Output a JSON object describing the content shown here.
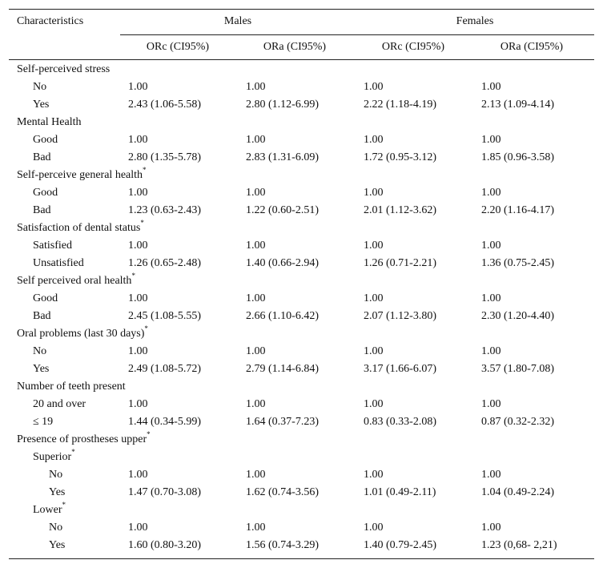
{
  "table": {
    "header": {
      "characteristics": "Characteristics",
      "groups": [
        {
          "label": "Males",
          "columns": [
            "ORc (CI95%)",
            "ORa (CI95%)"
          ]
        },
        {
          "label": "Females",
          "columns": [
            "ORc (CI95%)",
            "ORa (CI95%)"
          ]
        }
      ]
    },
    "sections": [
      {
        "label": "Self-perceived stress",
        "rows": [
          {
            "label": "No",
            "values": [
              "1.00",
              "1.00",
              "1.00",
              "1.00"
            ]
          },
          {
            "label": "Yes",
            "values": [
              "2.43 (1.06-5.58)",
              "2.80 (1.12-6.99)",
              "2.22 (1.18-4.19)",
              "2.13 (1.09-4.14)"
            ]
          }
        ]
      },
      {
        "label": "Mental Health",
        "rows": [
          {
            "label": "Good",
            "values": [
              "1.00",
              "1.00",
              "1.00",
              "1.00"
            ]
          },
          {
            "label": "Bad",
            "values": [
              "2.80 (1.35-5.78)",
              "2.83 (1.31-6.09)",
              "1.72 (0.95-3.12)",
              "1.85 (0.96-3.58)"
            ]
          }
        ]
      },
      {
        "label": "Self-perceive general health",
        "note": "*",
        "rows": [
          {
            "label": "Good",
            "values": [
              "1.00",
              "1.00",
              "1.00",
              "1.00"
            ]
          },
          {
            "label": "Bad",
            "values": [
              "1.23 (0.63-2.43)",
              "1.22 (0.60-2.51)",
              "2.01 (1.12-3.62)",
              "2.20 (1.16-4.17)"
            ]
          }
        ]
      },
      {
        "label": "Satisfaction of dental status",
        "note": "*",
        "rows": [
          {
            "label": "Satisfied",
            "values": [
              "1.00",
              "1.00",
              "1.00",
              "1.00"
            ]
          },
          {
            "label": "Unsatisfied",
            "values": [
              "1.26 (0.65-2.48)",
              "1.40 (0.66-2.94)",
              "1.26 (0.71-2.21)",
              "1.36 (0.75-2.45)"
            ]
          }
        ]
      },
      {
        "label": "Self perceived oral health",
        "note": "*",
        "rows": [
          {
            "label": "Good",
            "values": [
              "1.00",
              "1.00",
              "1.00",
              "1.00"
            ]
          },
          {
            "label": "Bad",
            "values": [
              "2.45 (1.08-5.55)",
              "2.66 (1.10-6.42)",
              "2.07 (1.12-3.80)",
              "2.30 (1.20-4.40)"
            ]
          }
        ]
      },
      {
        "label": "Oral problems (last 30 days)",
        "note": "*",
        "rows": [
          {
            "label": "No",
            "values": [
              "1.00",
              "1.00",
              "1.00",
              "1.00"
            ]
          },
          {
            "label": "Yes",
            "values": [
              "2.49 (1.08-5.72)",
              "2.79 (1.14-6.84)",
              "3.17 (1.66-6.07)",
              "3.57 (1.80-7.08)"
            ]
          }
        ]
      },
      {
        "label": "Number of teeth present",
        "rows": [
          {
            "label": "20 and over",
            "values": [
              "1.00",
              "1.00",
              "1.00",
              "1.00"
            ]
          },
          {
            "label": "≤ 19",
            "values": [
              "1.44 (0.34-5.99)",
              "1.64 (0.37-7.23)",
              "0.83 (0.33-2.08)",
              "0.87 (0.32-2.32)"
            ]
          }
        ]
      },
      {
        "label": "Presence of prostheses upper",
        "note": "*",
        "rows": [
          {
            "label": "Superior",
            "note": "*",
            "rows": [
              {
                "label": "No",
                "values": [
                  "1.00",
                  "1.00",
                  "1.00",
                  "1.00"
                ]
              },
              {
                "label": "Yes",
                "values": [
                  "1.47 (0.70-3.08)",
                  "1.62 (0.74-3.56)",
                  "1.01 (0.49-2.11)",
                  "1.04 (0.49-2.24)"
                ]
              }
            ]
          },
          {
            "label": "Lower",
            "note": "*",
            "rows": [
              {
                "label": "No",
                "values": [
                  "1.00",
                  "1.00",
                  "1.00",
                  "1.00"
                ]
              },
              {
                "label": "Yes",
                "values": [
                  "1.60 (0.80-3.20)",
                  "1.56 (0.74-3.29)",
                  "1.40 (0.79-2.45)",
                  "1.23 (0,68- 2,21)"
                ]
              }
            ]
          }
        ]
      }
    ]
  }
}
